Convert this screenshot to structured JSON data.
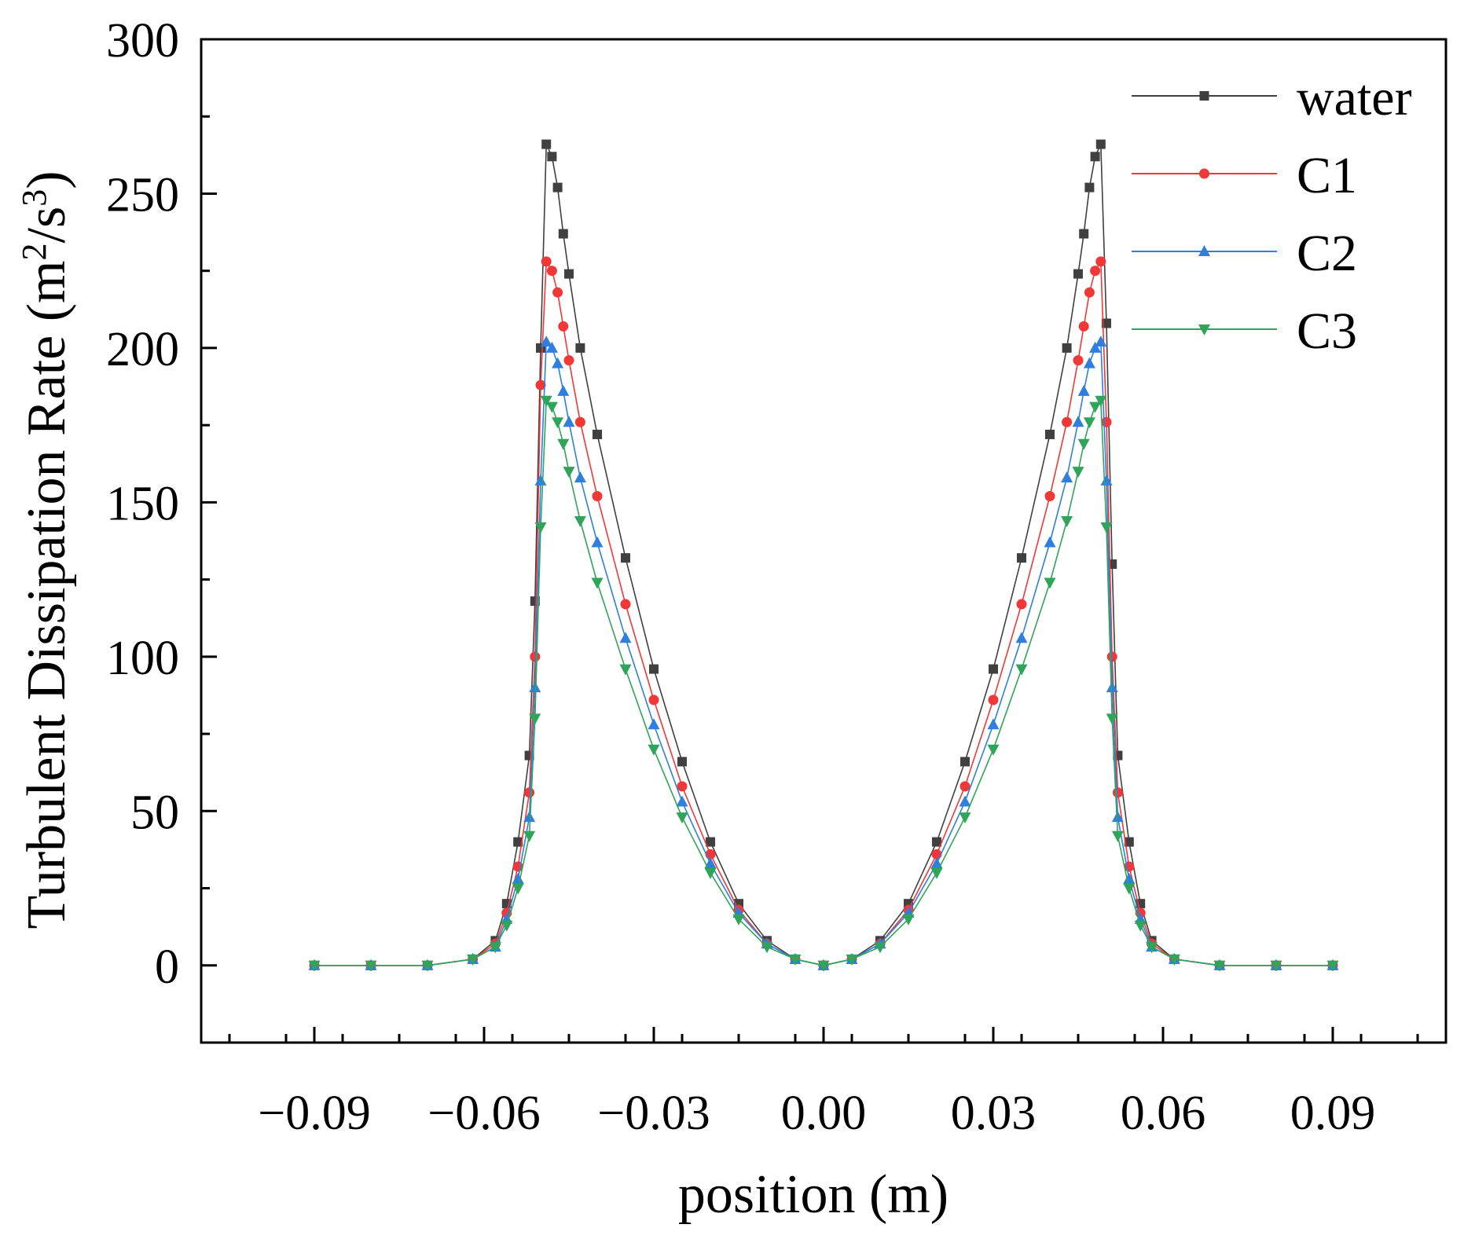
{
  "chart_data": {
    "type": "line",
    "title": "",
    "xlabel": "position (m)",
    "ylabel": "Turbulent Dissipation Rate (m²/s³)",
    "ylabel_parts": {
      "main": "Turbulent Dissipation Rate (m",
      "sup1": "2",
      "mid": "/s",
      "sup2": "3",
      "end": ")"
    },
    "xlim": [
      -0.11,
      0.11
    ],
    "ylim": [
      -25,
      300
    ],
    "xticks": [
      -0.09,
      -0.06,
      -0.03,
      0.0,
      0.03,
      0.06,
      0.09
    ],
    "xtick_labels": [
      "−0.09",
      "−0.06",
      "−0.03",
      "0.00",
      "0.03",
      "0.06",
      "0.09"
    ],
    "yticks": [
      0,
      50,
      100,
      150,
      200,
      250,
      300
    ],
    "ytick_labels": [
      "0",
      "50",
      "100",
      "150",
      "200",
      "250",
      "300"
    ],
    "legend_position": "top-right",
    "series": [
      {
        "name": "water",
        "color": "#404040",
        "marker": "square",
        "x": [
          -0.09,
          -0.08,
          -0.07,
          -0.062,
          -0.058,
          -0.056,
          -0.054,
          -0.052,
          -0.051,
          -0.05,
          -0.049,
          -0.048,
          -0.047,
          -0.046,
          -0.045,
          -0.043,
          -0.04,
          -0.035,
          -0.03,
          -0.025,
          -0.02,
          -0.015,
          -0.01,
          -0.005,
          0.0,
          0.005,
          0.01,
          0.015,
          0.02,
          0.025,
          0.03,
          0.035,
          0.04,
          0.043,
          0.045,
          0.046,
          0.047,
          0.048,
          0.049,
          0.05,
          0.051,
          0.052,
          0.054,
          0.056,
          0.058,
          0.062,
          0.07,
          0.08,
          0.09
        ],
        "y": [
          0,
          0,
          0,
          2,
          8,
          20,
          40,
          68,
          118,
          200,
          266,
          262,
          252,
          237,
          224,
          200,
          172,
          132,
          96,
          66,
          40,
          20,
          8,
          2,
          0,
          2,
          8,
          20,
          40,
          66,
          96,
          132,
          172,
          200,
          224,
          237,
          252,
          262,
          266,
          208,
          130,
          68,
          40,
          20,
          8,
          2,
          0,
          0,
          0
        ]
      },
      {
        "name": "C1",
        "color": "#f03838",
        "marker": "circle",
        "x": [
          -0.09,
          -0.08,
          -0.07,
          -0.062,
          -0.058,
          -0.056,
          -0.054,
          -0.052,
          -0.051,
          -0.05,
          -0.049,
          -0.048,
          -0.047,
          -0.046,
          -0.045,
          -0.043,
          -0.04,
          -0.035,
          -0.03,
          -0.025,
          -0.02,
          -0.015,
          -0.01,
          -0.005,
          0.0,
          0.005,
          0.01,
          0.015,
          0.02,
          0.025,
          0.03,
          0.035,
          0.04,
          0.043,
          0.045,
          0.046,
          0.047,
          0.048,
          0.049,
          0.05,
          0.051,
          0.052,
          0.054,
          0.056,
          0.058,
          0.062,
          0.07,
          0.08,
          0.09
        ],
        "y": [
          0,
          0,
          0,
          2,
          7,
          17,
          32,
          56,
          100,
          188,
          228,
          225,
          218,
          207,
          196,
          176,
          152,
          117,
          86,
          58,
          36,
          18,
          7,
          2,
          0,
          2,
          7,
          18,
          36,
          58,
          86,
          117,
          152,
          176,
          196,
          207,
          218,
          225,
          228,
          176,
          100,
          56,
          32,
          17,
          7,
          2,
          0,
          0,
          0
        ]
      },
      {
        "name": "C2",
        "color": "#2f7fe0",
        "marker": "triangle-up",
        "x": [
          -0.09,
          -0.08,
          -0.07,
          -0.062,
          -0.058,
          -0.056,
          -0.054,
          -0.052,
          -0.051,
          -0.05,
          -0.049,
          -0.048,
          -0.047,
          -0.046,
          -0.045,
          -0.043,
          -0.04,
          -0.035,
          -0.03,
          -0.025,
          -0.02,
          -0.015,
          -0.01,
          -0.005,
          0.0,
          0.005,
          0.01,
          0.015,
          0.02,
          0.025,
          0.03,
          0.035,
          0.04,
          0.043,
          0.045,
          0.046,
          0.047,
          0.048,
          0.049,
          0.05,
          0.051,
          0.052,
          0.054,
          0.056,
          0.058,
          0.062,
          0.07,
          0.08,
          0.09
        ],
        "y": [
          0,
          0,
          0,
          2,
          6,
          15,
          28,
          48,
          90,
          157,
          202,
          200,
          195,
          186,
          176,
          158,
          137,
          106,
          78,
          53,
          33,
          17,
          7,
          2,
          0,
          2,
          7,
          17,
          33,
          53,
          78,
          106,
          137,
          158,
          176,
          186,
          195,
          200,
          202,
          157,
          90,
          48,
          28,
          15,
          6,
          2,
          0,
          0,
          0
        ]
      },
      {
        "name": "C3",
        "color": "#2ea55a",
        "marker": "triangle-down",
        "x": [
          -0.09,
          -0.08,
          -0.07,
          -0.062,
          -0.058,
          -0.056,
          -0.054,
          -0.052,
          -0.051,
          -0.05,
          -0.049,
          -0.048,
          -0.047,
          -0.046,
          -0.045,
          -0.043,
          -0.04,
          -0.035,
          -0.03,
          -0.025,
          -0.02,
          -0.015,
          -0.01,
          -0.005,
          0.0,
          0.005,
          0.01,
          0.015,
          0.02,
          0.025,
          0.03,
          0.035,
          0.04,
          0.043,
          0.045,
          0.046,
          0.047,
          0.048,
          0.049,
          0.05,
          0.051,
          0.052,
          0.054,
          0.056,
          0.058,
          0.062,
          0.07,
          0.08,
          0.09
        ],
        "y": [
          0,
          0,
          0,
          2,
          6,
          13,
          25,
          42,
          80,
          142,
          183,
          181,
          176,
          169,
          160,
          144,
          124,
          96,
          70,
          48,
          30,
          15,
          6,
          2,
          0,
          2,
          6,
          15,
          30,
          48,
          70,
          96,
          124,
          144,
          160,
          169,
          176,
          181,
          183,
          142,
          80,
          42,
          25,
          13,
          6,
          2,
          0,
          0,
          0
        ]
      }
    ]
  }
}
